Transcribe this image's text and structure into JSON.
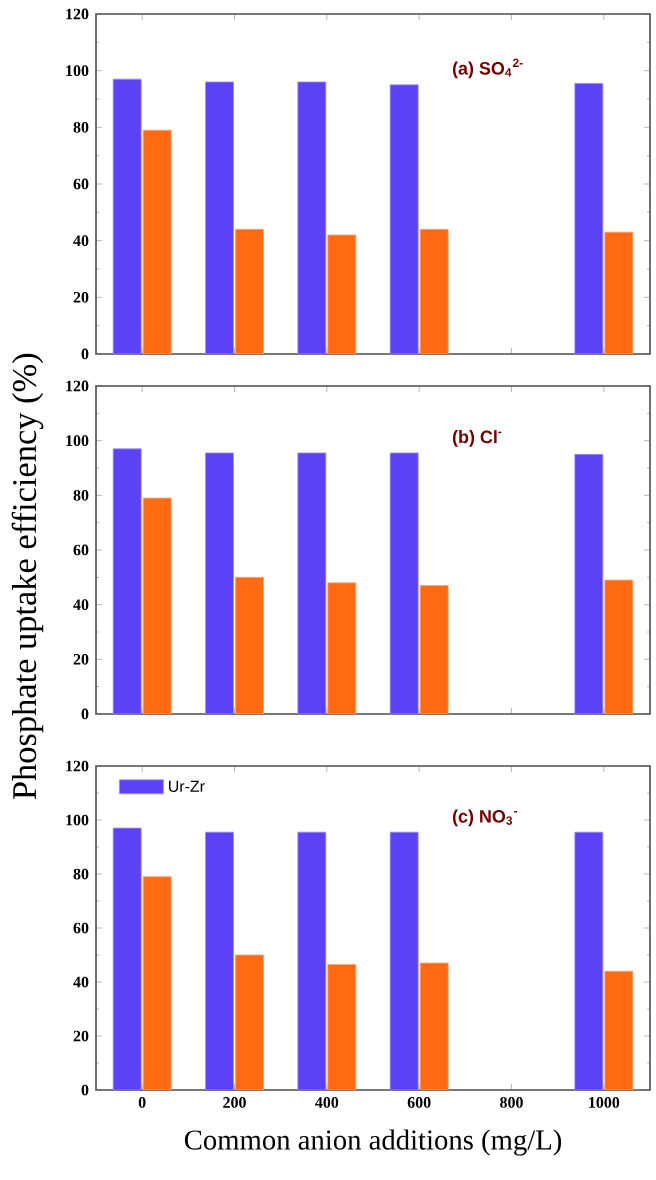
{
  "chart_data": [
    {
      "type": "bar",
      "categories": [
        "0",
        "200",
        "400",
        "600",
        "800",
        "1000"
      ],
      "series": [
        {
          "color": "#5b43f5",
          "values": [
            97,
            96,
            96,
            95,
            null,
            95.5
          ]
        },
        {
          "color": "#ff6a13",
          "values": [
            79,
            44,
            42,
            44,
            null,
            43
          ]
        }
      ],
      "ylim": [
        0,
        120
      ],
      "yticks": [
        0,
        20,
        40,
        60,
        80,
        100,
        120
      ],
      "tick_labels": "y",
      "annotations": [
        "(a)  SO$_{4}$$^{2-}$"
      ]
    },
    {
      "type": "bar",
      "categories": [
        "0",
        "200",
        "400",
        "600",
        "800",
        "1000"
      ],
      "series": [
        {
          "color": "#5b43f5",
          "values": [
            97,
            95.5,
            95.5,
            95.5,
            null,
            95
          ]
        },
        {
          "color": "#ff6a13",
          "values": [
            79,
            50,
            48,
            47,
            null,
            49
          ]
        }
      ],
      "ylim": [
        0,
        120
      ],
      "yticks": [
        0,
        20,
        40,
        60,
        80,
        100,
        120
      ],
      "tick_labels": "y",
      "ylabel": "Phosphate uptake efficiency (%)",
      "annotations": [
        "(b)  Cl$^{-}$"
      ]
    },
    {
      "type": "bar",
      "categories": [
        "0",
        "200",
        "400",
        "600",
        "800",
        "1000"
      ],
      "series": [
        {
          "name": "Ur-Zr",
          "color": "#5b43f5",
          "values": [
            97,
            95.5,
            95.5,
            95.5,
            null,
            95.5
          ]
        },
        {
          "color": "#ff6a13",
          "values": [
            79,
            50,
            46.5,
            47,
            null,
            44
          ]
        }
      ],
      "ylim": [
        0,
        120
      ],
      "yticks": [
        0,
        20,
        40,
        60,
        80,
        100,
        120
      ],
      "xlabel": "Common anion additions (mg/L)",
      "legend": "top left",
      "annotations": [
        "(c)  NO$_{3}$$^{-}$"
      ]
    }
  ]
}
